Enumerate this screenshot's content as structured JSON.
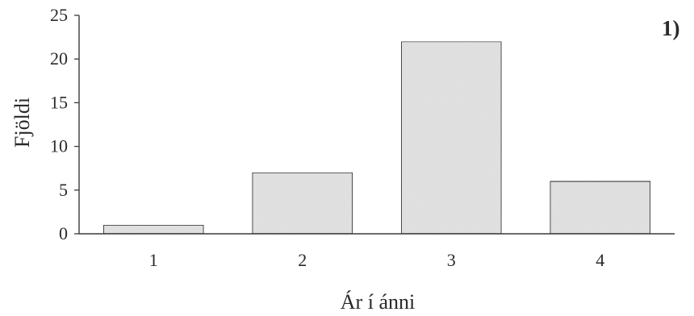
{
  "chart_data": {
    "type": "bar",
    "panel_label": "1)",
    "title": "",
    "xlabel": "Ár í ánni",
    "ylabel": "Fjöldi",
    "categories": [
      "1",
      "2",
      "3",
      "4"
    ],
    "values": [
      1,
      7,
      22,
      6
    ],
    "ylim": [
      0,
      25
    ],
    "yticks": [
      "0",
      "5",
      "10",
      "15",
      "20",
      "25"
    ],
    "grid": false,
    "legend": "none",
    "colors": {
      "bar_fill": "#e4e4e4",
      "bar_stroke": "#3a3a3a",
      "axis": "#3a3a3a",
      "text": "#2a2a2a"
    }
  }
}
